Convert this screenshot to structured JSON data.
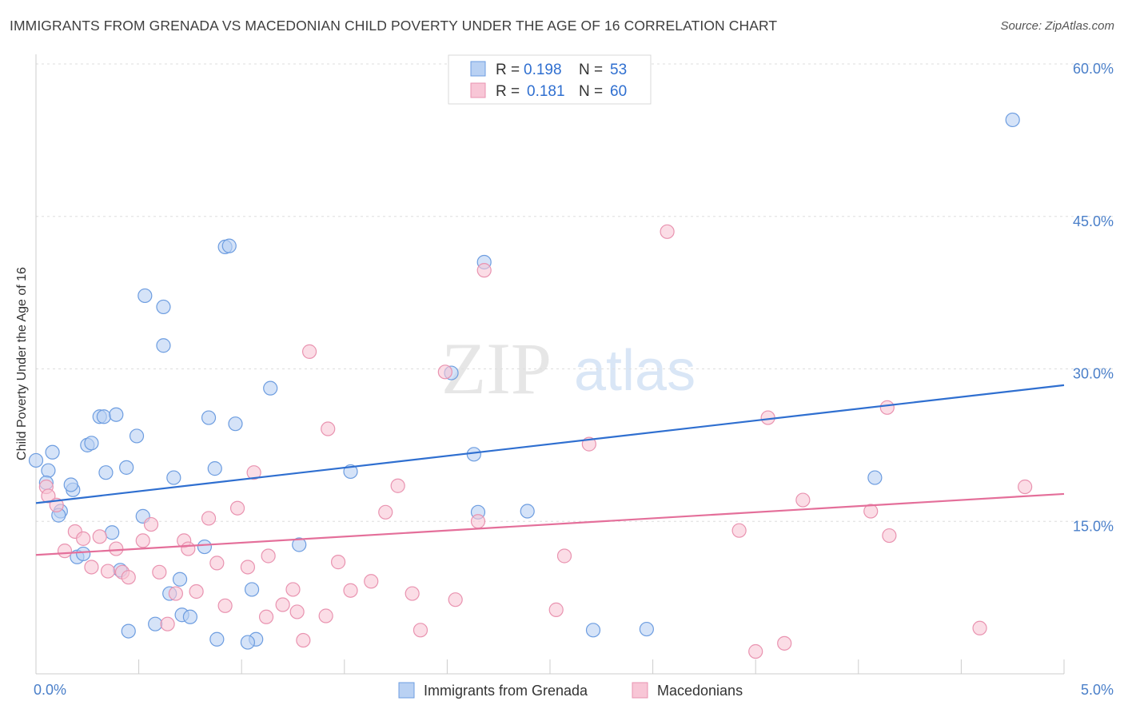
{
  "title": "IMMIGRANTS FROM GRENADA VS MACEDONIAN CHILD POVERTY UNDER THE AGE OF 16 CORRELATION CHART",
  "source": "Source: ZipAtlas.com",
  "watermark": {
    "zip": "ZIP",
    "atlas": "atlas"
  },
  "colors": {
    "blue_fill": "#b9d1f3",
    "blue_stroke": "#6d9de0",
    "blue_line": "#2f6fd0",
    "pink_fill": "#f8c6d6",
    "pink_stroke": "#e993b0",
    "pink_line": "#e46f9a",
    "tick_label": "#4a7fc9"
  },
  "legend": {
    "rows": [
      {
        "r_label": "R =",
        "r_value": "0.198",
        "n_label": "N =",
        "n_value": "53",
        "series": "blue"
      },
      {
        "r_label": "R =",
        "r_value": "0.181",
        "n_label": "N =",
        "n_value": "60",
        "series": "pink"
      }
    ]
  },
  "chart_data": {
    "type": "scatter",
    "title": "IMMIGRANTS FROM GRENADA VS MACEDONIAN CHILD POVERTY UNDER THE AGE OF 16 CORRELATION CHART",
    "xlabel": "",
    "ylabel": "Child Poverty Under the Age of 16",
    "xlim": [
      0,
      5
    ],
    "ylim": [
      0,
      60
    ],
    "x_tick_labels": [
      "0.0%",
      "5.0%"
    ],
    "y_ticks": [
      15,
      30,
      45,
      60
    ],
    "y_tick_labels": [
      "15.0%",
      "30.0%",
      "45.0%",
      "60.0%"
    ],
    "grid": true,
    "legend_position": "top-center",
    "series": [
      {
        "name": "Immigrants from Grenada",
        "color": "blue",
        "trend": {
          "x": [
            0,
            5
          ],
          "y": [
            16.8,
            28.4
          ]
        },
        "points": [
          [
            0.0,
            21.0
          ],
          [
            0.06,
            20.0
          ],
          [
            0.08,
            21.8
          ],
          [
            0.05,
            18.8
          ],
          [
            0.12,
            16.0
          ],
          [
            0.11,
            15.6
          ],
          [
            0.18,
            18.1
          ],
          [
            0.17,
            18.6
          ],
          [
            0.25,
            22.5
          ],
          [
            0.27,
            22.7
          ],
          [
            0.31,
            25.3
          ],
          [
            0.33,
            25.3
          ],
          [
            0.39,
            25.5
          ],
          [
            0.34,
            19.8
          ],
          [
            0.44,
            20.3
          ],
          [
            0.49,
            23.4
          ],
          [
            0.37,
            13.9
          ],
          [
            0.2,
            11.5
          ],
          [
            0.23,
            11.8
          ],
          [
            0.41,
            10.2
          ],
          [
            0.45,
            4.2
          ],
          [
            0.52,
            15.5
          ],
          [
            0.53,
            37.2
          ],
          [
            0.62,
            36.1
          ],
          [
            0.62,
            32.3
          ],
          [
            0.67,
            19.3
          ],
          [
            0.65,
            7.9
          ],
          [
            0.7,
            9.3
          ],
          [
            0.71,
            5.8
          ],
          [
            0.75,
            5.6
          ],
          [
            0.58,
            4.9
          ],
          [
            0.82,
            12.5
          ],
          [
            0.84,
            25.2
          ],
          [
            0.87,
            20.2
          ],
          [
            0.88,
            3.4
          ],
          [
            0.92,
            42.0
          ],
          [
            0.94,
            42.1
          ],
          [
            0.97,
            24.6
          ],
          [
            1.05,
            8.3
          ],
          [
            1.07,
            3.4
          ],
          [
            1.03,
            3.1
          ],
          [
            1.14,
            28.1
          ],
          [
            1.28,
            12.7
          ],
          [
            1.53,
            19.9
          ],
          [
            2.02,
            29.6
          ],
          [
            2.13,
            21.6
          ],
          [
            2.15,
            15.9
          ],
          [
            2.18,
            40.5
          ],
          [
            2.39,
            16.0
          ],
          [
            2.71,
            4.3
          ],
          [
            2.97,
            4.4
          ],
          [
            4.08,
            19.3
          ],
          [
            4.75,
            54.5
          ]
        ]
      },
      {
        "name": "Macedonians",
        "color": "pink",
        "trend": {
          "x": [
            0,
            5
          ],
          "y": [
            11.7,
            17.7
          ]
        },
        "points": [
          [
            0.05,
            18.4
          ],
          [
            0.06,
            17.5
          ],
          [
            0.1,
            16.6
          ],
          [
            0.14,
            12.1
          ],
          [
            0.19,
            14.0
          ],
          [
            0.23,
            13.3
          ],
          [
            0.27,
            10.5
          ],
          [
            0.31,
            13.5
          ],
          [
            0.35,
            10.1
          ],
          [
            0.39,
            12.3
          ],
          [
            0.42,
            10.0
          ],
          [
            0.45,
            9.5
          ],
          [
            0.52,
            13.1
          ],
          [
            0.56,
            14.7
          ],
          [
            0.6,
            10.0
          ],
          [
            0.64,
            4.9
          ],
          [
            0.68,
            7.9
          ],
          [
            0.72,
            13.1
          ],
          [
            0.74,
            12.3
          ],
          [
            0.78,
            8.1
          ],
          [
            0.84,
            15.3
          ],
          [
            0.88,
            10.9
          ],
          [
            0.92,
            6.7
          ],
          [
            0.98,
            16.3
          ],
          [
            1.03,
            10.5
          ],
          [
            1.06,
            19.8
          ],
          [
            1.12,
            5.6
          ],
          [
            1.13,
            11.6
          ],
          [
            1.2,
            6.8
          ],
          [
            1.25,
            8.3
          ],
          [
            1.33,
            31.7
          ],
          [
            1.27,
            6.1
          ],
          [
            1.3,
            3.3
          ],
          [
            1.41,
            5.7
          ],
          [
            1.42,
            24.1
          ],
          [
            1.47,
            11.0
          ],
          [
            1.53,
            8.2
          ],
          [
            1.63,
            9.1
          ],
          [
            1.7,
            15.9
          ],
          [
            1.76,
            18.5
          ],
          [
            1.83,
            7.9
          ],
          [
            1.87,
            4.3
          ],
          [
            1.99,
            29.7
          ],
          [
            2.04,
            7.3
          ],
          [
            2.15,
            15.0
          ],
          [
            2.18,
            39.7
          ],
          [
            2.53,
            6.3
          ],
          [
            2.57,
            11.6
          ],
          [
            2.69,
            22.6
          ],
          [
            3.07,
            43.5
          ],
          [
            3.42,
            14.1
          ],
          [
            3.5,
            2.2
          ],
          [
            3.56,
            25.2
          ],
          [
            3.64,
            3.0
          ],
          [
            3.73,
            17.1
          ],
          [
            4.06,
            16.0
          ],
          [
            4.14,
            26.2
          ],
          [
            4.15,
            13.6
          ],
          [
            4.59,
            4.5
          ],
          [
            4.81,
            18.4
          ]
        ]
      }
    ]
  }
}
